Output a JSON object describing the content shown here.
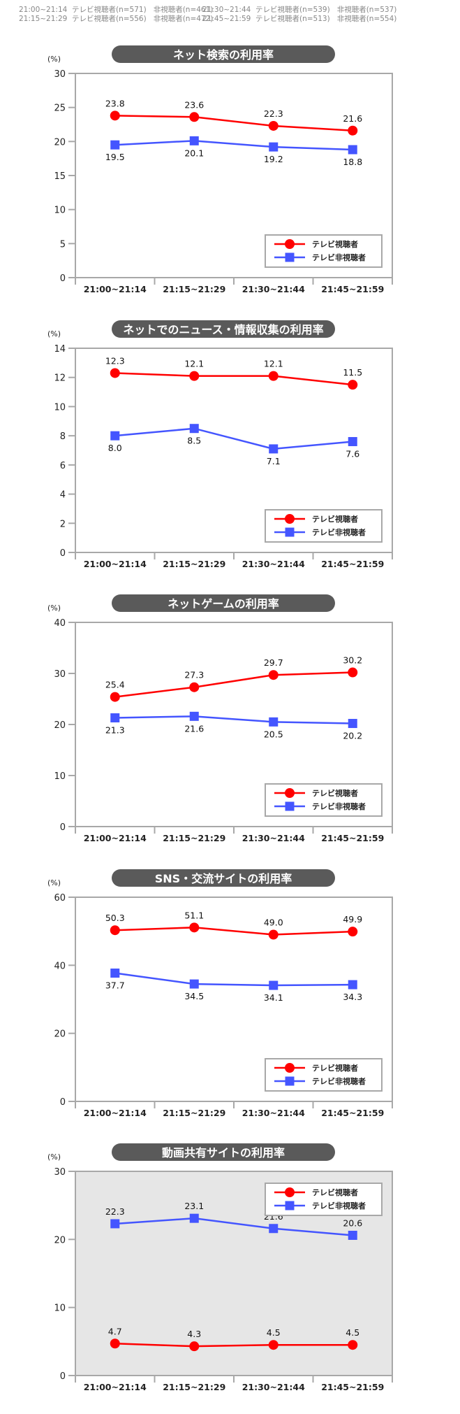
{
  "header": {
    "rows": [
      [
        "21:00~21:14  テレビ視聴者(n=571)   非視聴者(n=461)",
        "21:30~21:44  テレビ視聴者(n=539)   非視聴者(n=537)"
      ],
      [
        "21:15~21:29  テレビ視聴者(n=556)   非視聴者(n=472)",
        "21:45~21:59  テレビ視聴者(n=513)   非視聴者(n=554)"
      ]
    ]
  },
  "colors": {
    "tv_viewers": "#ff0000",
    "non_viewers": "#4455ff",
    "title_bg": "#5a5a5a",
    "axis": "#a8a8a8",
    "highlight_bg": "#e6e6e6"
  },
  "chart_data": [
    {
      "type": "line",
      "title": "ネット検索の利用率",
      "ylabel": "(%)",
      "categories": [
        "21:00~21:14",
        "21:15~21:29",
        "21:30~21:44",
        "21:45~21:59"
      ],
      "ylim": [
        0,
        30
      ],
      "yticks": [
        0,
        5,
        10,
        15,
        20,
        25,
        30
      ],
      "legend": "bottom-right",
      "background": "#ffffff",
      "series": [
        {
          "name": "テレビ視聴者",
          "marker": "circle",
          "values": [
            23.8,
            23.6,
            22.3,
            21.6
          ]
        },
        {
          "name": "テレビ非視聴者",
          "marker": "square",
          "values": [
            19.5,
            20.1,
            19.2,
            18.8
          ]
        }
      ]
    },
    {
      "type": "line",
      "title": "ネットでのニュース・情報収集の利用率",
      "ylabel": "(%)",
      "categories": [
        "21:00~21:14",
        "21:15~21:29",
        "21:30~21:44",
        "21:45~21:59"
      ],
      "ylim": [
        0,
        14
      ],
      "yticks": [
        0,
        2,
        4,
        6,
        8,
        10,
        12,
        14
      ],
      "legend": "bottom-right",
      "background": "#ffffff",
      "series": [
        {
          "name": "テレビ視聴者",
          "marker": "circle",
          "values": [
            12.3,
            12.1,
            12.1,
            11.5
          ]
        },
        {
          "name": "テレビ非視聴者",
          "marker": "square",
          "values": [
            8.0,
            8.5,
            7.1,
            7.6
          ]
        }
      ]
    },
    {
      "type": "line",
      "title": "ネットゲームの利用率",
      "ylabel": "(%)",
      "categories": [
        "21:00~21:14",
        "21:15~21:29",
        "21:30~21:44",
        "21:45~21:59"
      ],
      "ylim": [
        0,
        40
      ],
      "yticks": [
        0,
        10,
        20,
        30,
        40
      ],
      "legend": "bottom-right",
      "background": "#ffffff",
      "series": [
        {
          "name": "テレビ視聴者",
          "marker": "circle",
          "values": [
            25.4,
            27.3,
            29.7,
            30.2
          ]
        },
        {
          "name": "テレビ非視聴者",
          "marker": "square",
          "values": [
            21.3,
            21.6,
            20.5,
            20.2
          ]
        }
      ]
    },
    {
      "type": "line",
      "title": "SNS・交流サイトの利用率",
      "ylabel": "(%)",
      "categories": [
        "21:00~21:14",
        "21:15~21:29",
        "21:30~21:44",
        "21:45~21:59"
      ],
      "ylim": [
        0,
        60
      ],
      "yticks": [
        0,
        20,
        40,
        60
      ],
      "legend": "bottom-right",
      "background": "#ffffff",
      "series": [
        {
          "name": "テレビ視聴者",
          "marker": "circle",
          "values": [
            50.3,
            51.1,
            49.0,
            49.9
          ]
        },
        {
          "name": "テレビ非視聴者",
          "marker": "square",
          "values": [
            37.7,
            34.5,
            34.1,
            34.3
          ]
        }
      ]
    },
    {
      "type": "line",
      "title": "動画共有サイトの利用率",
      "ylabel": "(%)",
      "categories": [
        "21:00~21:14",
        "21:15~21:29",
        "21:30~21:44",
        "21:45~21:59"
      ],
      "ylim": [
        0,
        30
      ],
      "yticks": [
        0,
        10,
        20,
        30
      ],
      "legend": "top-right",
      "background": "#e6e6e6",
      "series": [
        {
          "name": "テレビ視聴者",
          "marker": "circle",
          "values": [
            4.7,
            4.3,
            4.5,
            4.5
          ]
        },
        {
          "name": "テレビ非視聴者",
          "marker": "square",
          "values": [
            22.3,
            23.1,
            21.6,
            20.6
          ]
        }
      ]
    }
  ]
}
